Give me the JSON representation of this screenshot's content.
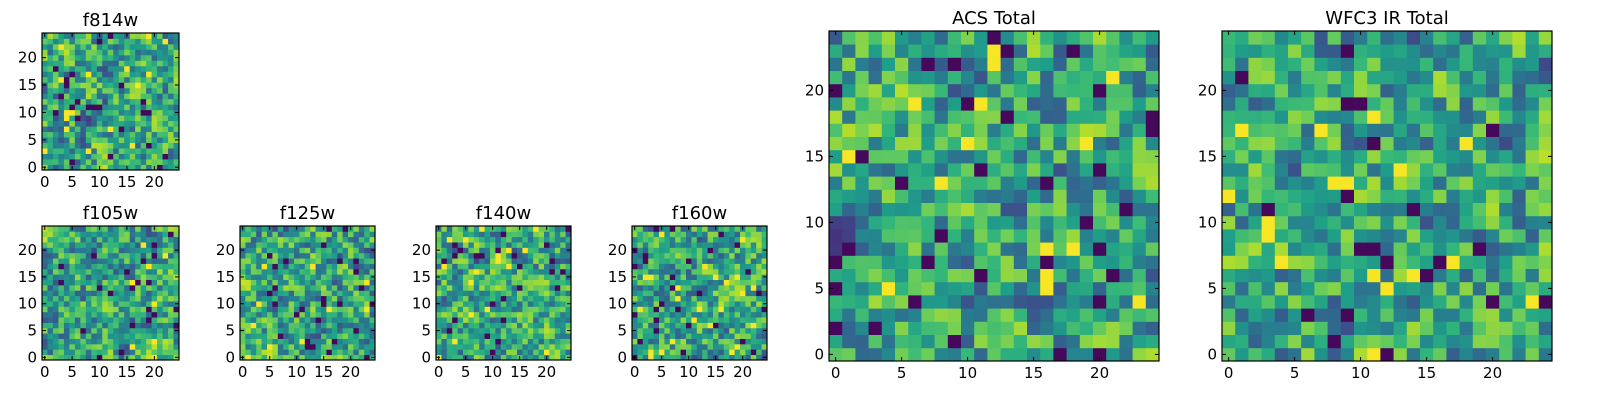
{
  "colors": {
    "low": "#440154",
    "high": "#fde725",
    "frame": "#000000",
    "background": "#ffffff"
  },
  "chart_data": [
    {
      "type": "heatmap",
      "title": "f814w",
      "xlabel": "",
      "ylabel": "",
      "xlim": [
        -0.5,
        24.5
      ],
      "ylim": [
        -0.5,
        24.5
      ],
      "xticks": [
        "0",
        "5",
        "10",
        "15",
        "20"
      ],
      "yticks": [
        "0",
        "5",
        "10",
        "15",
        "20"
      ],
      "grid_size": [
        25,
        25
      ],
      "colormap": "viridis",
      "seed": 11
    },
    {
      "type": "heatmap",
      "title": "f105w",
      "xlabel": "",
      "ylabel": "",
      "xlim": [
        -0.5,
        24.5
      ],
      "ylim": [
        -0.5,
        24.5
      ],
      "xticks": [
        "0",
        "5",
        "10",
        "15",
        "20"
      ],
      "yticks": [
        "0",
        "5",
        "10",
        "15",
        "20"
      ],
      "grid_size": [
        25,
        25
      ],
      "colormap": "viridis",
      "seed": 23
    },
    {
      "type": "heatmap",
      "title": "f125w",
      "xlabel": "",
      "ylabel": "",
      "xlim": [
        -0.5,
        24.5
      ],
      "ylim": [
        -0.5,
        24.5
      ],
      "xticks": [
        "0",
        "5",
        "10",
        "15",
        "20"
      ],
      "yticks": [
        "0",
        "5",
        "10",
        "15",
        "20"
      ],
      "grid_size": [
        25,
        25
      ],
      "colormap": "viridis",
      "seed": 37
    },
    {
      "type": "heatmap",
      "title": "f140w",
      "xlabel": "",
      "ylabel": "",
      "xlim": [
        -0.5,
        24.5
      ],
      "ylim": [
        -0.5,
        24.5
      ],
      "xticks": [
        "0",
        "5",
        "10",
        "15",
        "20"
      ],
      "yticks": [
        "0",
        "5",
        "10",
        "15",
        "20"
      ],
      "grid_size": [
        25,
        25
      ],
      "colormap": "viridis",
      "seed": 41
    },
    {
      "type": "heatmap",
      "title": "f160w",
      "xlabel": "",
      "ylabel": "",
      "xlim": [
        -0.5,
        24.5
      ],
      "ylim": [
        -0.5,
        24.5
      ],
      "xticks": [
        "0",
        "5",
        "10",
        "15",
        "20"
      ],
      "yticks": [
        "0",
        "5",
        "10",
        "15",
        "20"
      ],
      "grid_size": [
        25,
        25
      ],
      "colormap": "viridis",
      "seed": 53
    },
    {
      "type": "heatmap",
      "title": "ACS Total",
      "xlabel": "",
      "ylabel": "",
      "xlim": [
        -0.5,
        24.5
      ],
      "ylim": [
        -0.5,
        24.5
      ],
      "xticks": [
        "0",
        "5",
        "10",
        "15",
        "20"
      ],
      "yticks": [
        "0",
        "5",
        "10",
        "15",
        "20"
      ],
      "grid_size": [
        25,
        25
      ],
      "colormap": "viridis",
      "seed": 67
    },
    {
      "type": "heatmap",
      "title": "WFC3 IR Total",
      "xlabel": "",
      "ylabel": "",
      "xlim": [
        -0.5,
        24.5
      ],
      "ylim": [
        -0.5,
        24.5
      ],
      "xticks": [
        "0",
        "5",
        "10",
        "15",
        "20"
      ],
      "yticks": [
        "0",
        "5",
        "10",
        "15",
        "20"
      ],
      "grid_size": [
        25,
        25
      ],
      "colormap": "viridis",
      "seed": 79
    }
  ]
}
